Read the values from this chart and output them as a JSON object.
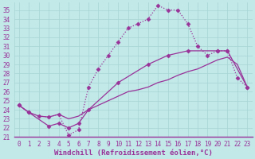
{
  "xlabel": "Windchill (Refroidissement éolien,°C)",
  "xlim": [
    -0.5,
    23.5
  ],
  "ylim": [
    21,
    35.8
  ],
  "xticks": [
    0,
    1,
    2,
    3,
    4,
    5,
    6,
    7,
    8,
    9,
    10,
    11,
    12,
    13,
    14,
    15,
    16,
    17,
    18,
    19,
    20,
    21,
    22,
    23
  ],
  "yticks": [
    21,
    22,
    23,
    24,
    25,
    26,
    27,
    28,
    29,
    30,
    31,
    32,
    33,
    34,
    35
  ],
  "bg_color": "#c2e8e8",
  "grid_color": "#a8d4d4",
  "line_color": "#993399",
  "line1_x": [
    0,
    1,
    2,
    3,
    4,
    5,
    6,
    7,
    8,
    9,
    10,
    11,
    12,
    13,
    14,
    15,
    16,
    17,
    18,
    19,
    20,
    21,
    22,
    23
  ],
  "line1_y": [
    24.5,
    23.7,
    23.3,
    23.2,
    23.5,
    21.2,
    21.8,
    26.5,
    28.5,
    30.0,
    31.5,
    33.0,
    33.5,
    34.0,
    35.5,
    35.0,
    35.0,
    33.5,
    31.0,
    30.0,
    30.5,
    30.5,
    27.5,
    26.5
  ],
  "line2_x": [
    0,
    1,
    3,
    4,
    5,
    6,
    7,
    10,
    13,
    15,
    17,
    20,
    21,
    23
  ],
  "line2_y": [
    24.5,
    23.7,
    22.2,
    22.5,
    22.0,
    22.5,
    24.0,
    27.0,
    29.0,
    30.0,
    30.5,
    30.5,
    30.5,
    26.5
  ],
  "line3_x": [
    0,
    1,
    2,
    3,
    4,
    5,
    6,
    7,
    8,
    9,
    10,
    11,
    12,
    13,
    14,
    15,
    16,
    17,
    18,
    19,
    20,
    21,
    22,
    23
  ],
  "line3_y": [
    24.5,
    23.7,
    23.3,
    23.2,
    23.5,
    23.0,
    23.3,
    24.0,
    24.5,
    25.0,
    25.5,
    26.0,
    26.2,
    26.5,
    27.0,
    27.3,
    27.8,
    28.2,
    28.5,
    29.0,
    29.5,
    29.8,
    29.0,
    26.5
  ],
  "marker": "D",
  "marker_size": 2.5,
  "line_width": 0.9,
  "font_color": "#993399",
  "font_size": 6.5,
  "tick_font_size": 5.5
}
